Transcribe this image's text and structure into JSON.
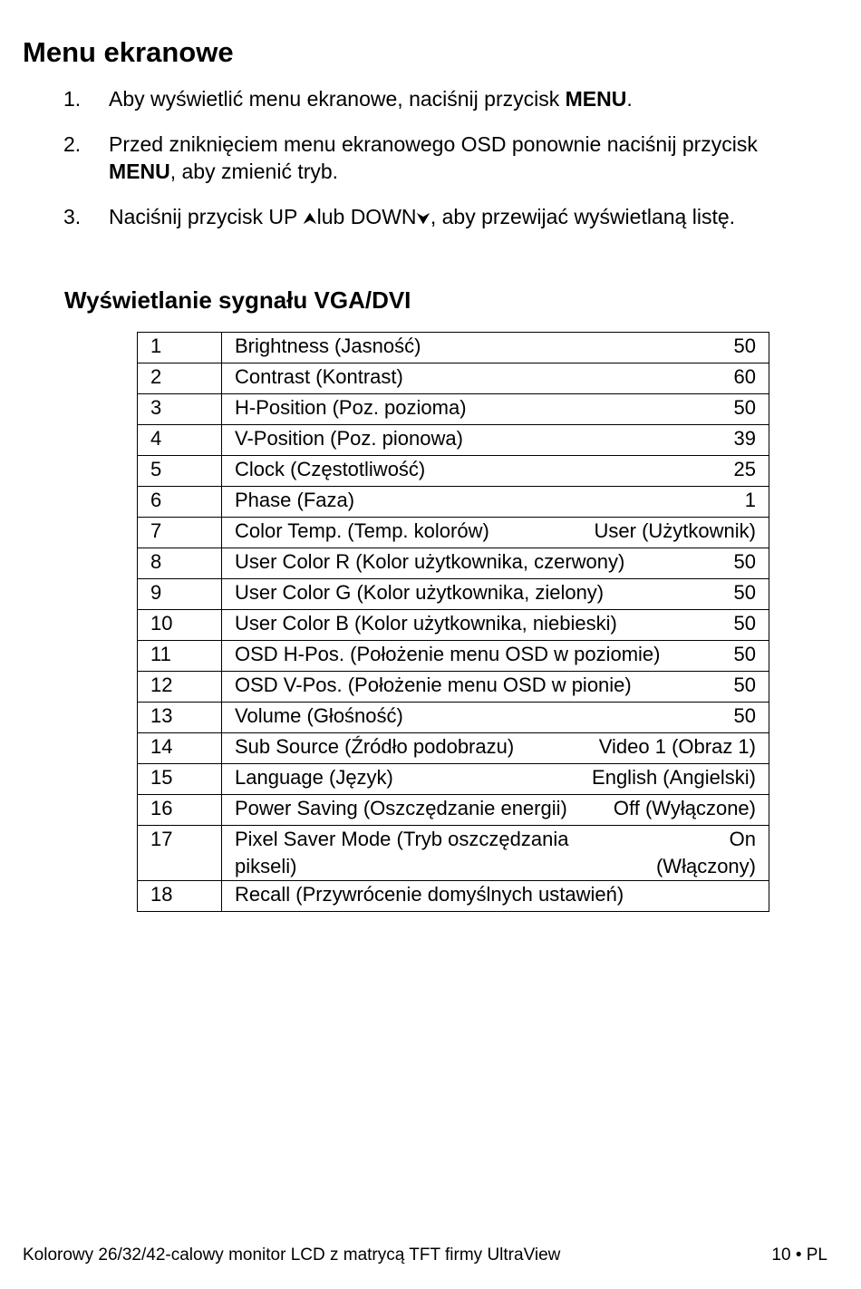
{
  "title": "Menu ekranowe",
  "steps": [
    {
      "num": "1.",
      "pre": "Aby wyświetlić menu ekranowe, naciśnij przycisk ",
      "bold": "MENU",
      "post": "."
    },
    {
      "num": "2.",
      "pre": "Przed zniknięciem menu ekranowego OSD ponownie naciśnij przycisk ",
      "bold": "MENU",
      "post": ", aby zmienić tryb."
    },
    {
      "num": "3.",
      "pre": "Naciśnij przycisk UP ",
      "up_icon": "⮝",
      "mid": "lub DOWN",
      "down_icon": "⮟",
      "post": ", aby przewijać wyświetlaną listę."
    }
  ],
  "subtitle": "Wyświetlanie sygnału VGA/DVI",
  "table": [
    [
      "1",
      "Brightness (Jasność)",
      "50"
    ],
    [
      "2",
      "Contrast (Kontrast)",
      "60"
    ],
    [
      "3",
      "H-Position (Poz. pozioma)",
      "50"
    ],
    [
      "4",
      "V-Position (Poz. pionowa)",
      "39"
    ],
    [
      "5",
      "Clock (Częstotliwość)",
      "25"
    ],
    [
      "6",
      "Phase (Faza)",
      "1"
    ],
    [
      "7",
      "Color Temp. (Temp. kolorów)",
      "User (Użytkownik)"
    ],
    [
      "8",
      "User Color R (Kolor użytkownika, czerwony)",
      "50"
    ],
    [
      "9",
      "User Color G (Kolor użytkownika, zielony)",
      "50"
    ],
    [
      "10",
      "User Color B (Kolor użytkownika, niebieski)",
      "50"
    ],
    [
      "11",
      "OSD H-Pos. (Położenie menu OSD w poziomie)",
      "50"
    ],
    [
      "12",
      "OSD V-Pos. (Położenie menu OSD w pionie)",
      "50"
    ],
    [
      "13",
      "Volume (Głośność)",
      "50"
    ],
    [
      "14",
      "Sub Source (Źródło podobrazu)",
      "Video 1 (Obraz 1)"
    ],
    [
      "15",
      "Language (Język)",
      "English (Angielski)"
    ],
    [
      "16",
      "Power Saving (Oszczędzanie energii)",
      "Off (Wyłączone)"
    ],
    [
      "17",
      "Pixel Saver Mode (Tryb oszczędzania pikseli)",
      "On (Włączony)"
    ],
    [
      "18",
      "Recall (Przywrócenie domyślnych ustawień)",
      ""
    ]
  ],
  "footer": {
    "text": "Kolorowy 26/32/42-calowy monitor LCD z matrycą TFT firmy UltraView",
    "page": "10 • PL"
  }
}
